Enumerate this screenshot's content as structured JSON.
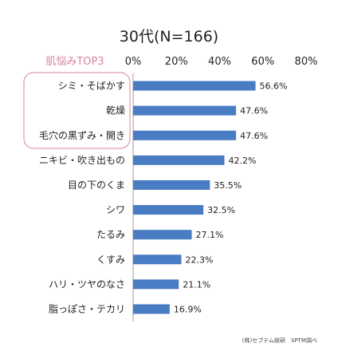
{
  "chart_data": {
    "type": "bar",
    "orientation": "horizontal",
    "title": "30代(N=166)",
    "highlight_label": "肌悩みTOP3",
    "highlight_count": 3,
    "categories": [
      "シミ・そばかす",
      "乾燥",
      "毛穴の黒ずみ・開き",
      "ニキビ・吹き出もの",
      "目の下のくま",
      "シワ",
      "たるみ",
      "くすみ",
      "ハリ・ツヤのなさ",
      "脂っぽさ・テカリ"
    ],
    "values": [
      56.6,
      47.6,
      47.6,
      42.2,
      35.5,
      32.5,
      27.1,
      22.3,
      21.1,
      16.9
    ],
    "value_labels": [
      "56.6%",
      "47.6%",
      "47.6%",
      "42.2%",
      "35.5%",
      "32.5%",
      "27.1%",
      "22.3%",
      "21.1%",
      "16.9%"
    ],
    "tick_values": [
      0,
      20,
      40,
      60,
      80
    ],
    "tick_labels": [
      "0%",
      "20%",
      "40%",
      "60%",
      "80%"
    ],
    "xlim": [
      0,
      80
    ],
    "grid": false,
    "legend": "none",
    "source": "(株)セプテム総研　SPTM調べ",
    "colors": {
      "bar": "#4a7cc4",
      "highlight": "#d8859c",
      "axis": "#999999"
    }
  }
}
